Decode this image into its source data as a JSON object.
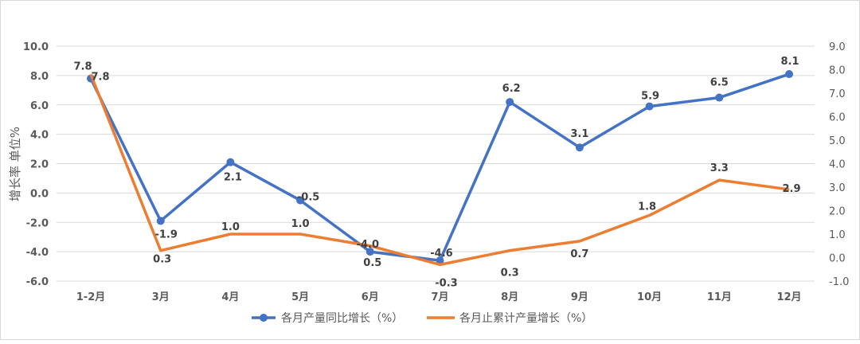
{
  "chart_data": {
    "type": "line",
    "title": "",
    "ylabel": "增长率 单位%",
    "categories": [
      "1-2月",
      "3月",
      "4月",
      "5月",
      "6月",
      "7月",
      "8月",
      "9月",
      "10月",
      "11月",
      "12月"
    ],
    "ylim": [
      -6,
      10
    ],
    "yticks": [
      "10.0",
      "8.0",
      "6.0",
      "4.0",
      "2.0",
      "0.0",
      "-2.0",
      "-4.0",
      "-6.0"
    ],
    "y2lim": [
      -1,
      9
    ],
    "y2ticks": [
      "9.0",
      "8.0",
      "7.0",
      "6.0",
      "5.0",
      "4.0",
      "3.0",
      "2.0",
      "1.0",
      "0.0",
      "-1.0"
    ],
    "grid": true,
    "legend_position": "bottom",
    "series": [
      {
        "name": "各月产量同比增长（%）",
        "axis": "left",
        "color": "#4472c4",
        "values": [
          7.8,
          -1.9,
          2.1,
          -0.5,
          -4.0,
          -4.6,
          6.2,
          3.1,
          5.9,
          6.5,
          8.1
        ],
        "labels": [
          "7.8",
          "-1.9",
          "2.1",
          "-0.5",
          "-4.0",
          "-4.6",
          "6.2",
          "3.1",
          "5.9",
          "6.5",
          "8.1"
        ]
      },
      {
        "name": "各月止累计产量增长（%）",
        "axis": "right",
        "color": "#ed7d31",
        "values": [
          7.8,
          0.3,
          1.0,
          1.0,
          0.5,
          -0.3,
          0.3,
          0.7,
          1.8,
          3.3,
          2.9
        ],
        "labels": [
          "7.8",
          "0.3",
          "1.0",
          "1.0",
          "0.5",
          "-0.3",
          "0.3",
          "0.7",
          "1.8",
          "3.3",
          "2.9"
        ]
      }
    ]
  }
}
